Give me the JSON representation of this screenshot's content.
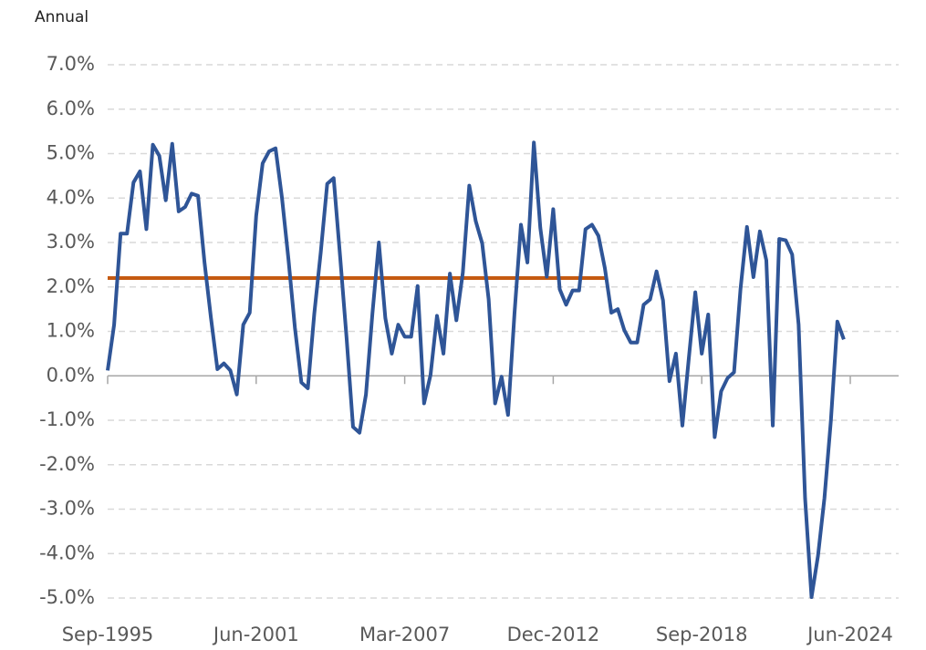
{
  "chart_data": {
    "type": "line",
    "y_label": "Annual",
    "categories": [
      "Sep-1995",
      null,
      null,
      null,
      null,
      null,
      null,
      null,
      null,
      null,
      null,
      null,
      null,
      null,
      null,
      null,
      null,
      null,
      null,
      null,
      null,
      null,
      null,
      "Jun-2001",
      null,
      null,
      null,
      null,
      null,
      null,
      null,
      null,
      null,
      null,
      null,
      null,
      null,
      null,
      null,
      null,
      null,
      null,
      null,
      null,
      null,
      null,
      "Mar-2007",
      null,
      null,
      null,
      null,
      null,
      null,
      null,
      null,
      null,
      null,
      null,
      null,
      null,
      null,
      null,
      null,
      null,
      null,
      null,
      null,
      null,
      null,
      "Dec-2012",
      null,
      null,
      null,
      null,
      null,
      null,
      null,
      null,
      null,
      null,
      null,
      null,
      null,
      null,
      null,
      null,
      null,
      null,
      null,
      null,
      null,
      null,
      "Sep-2018",
      null,
      null,
      null,
      null,
      null,
      null,
      null,
      null,
      null,
      null,
      null,
      null,
      null,
      null,
      null,
      null,
      null,
      null,
      null,
      null,
      null,
      null,
      "Jun-2024"
    ],
    "series": [
      {
        "color": "#2f5597",
        "values": [
          0.12,
          1.15,
          3.2,
          3.2,
          4.35,
          4.6,
          3.3,
          5.2,
          4.95,
          3.95,
          5.22,
          3.7,
          3.8,
          4.1,
          4.05,
          2.55,
          1.3,
          0.15,
          0.28,
          0.12,
          -0.42,
          1.15,
          1.42,
          3.6,
          4.78,
          5.05,
          5.12,
          4.0,
          2.62,
          1.08,
          -0.15,
          -0.28,
          1.4,
          2.78,
          4.32,
          4.45,
          2.68,
          0.85,
          -1.15,
          -1.28,
          -0.42,
          1.4,
          3.0,
          1.3,
          0.5,
          1.15,
          0.88,
          0.88,
          2.02,
          -0.62,
          0.02,
          1.35,
          0.5,
          2.3,
          1.25,
          2.32,
          4.28,
          3.48,
          2.98,
          1.72,
          -0.62,
          -0.02,
          -0.88,
          1.4,
          3.4,
          2.55,
          5.25,
          3.33,
          2.23,
          3.75,
          1.95,
          1.6,
          1.92,
          1.92,
          3.3,
          3.4,
          3.15,
          2.42,
          1.42,
          1.5,
          1.03,
          0.75,
          0.75,
          1.6,
          1.72,
          2.35,
          1.7,
          -0.12,
          0.5,
          -1.12,
          0.4,
          1.88,
          0.5,
          1.38,
          -1.38,
          -0.35,
          -0.05,
          0.08,
          1.95,
          3.35,
          2.22,
          3.25,
          2.6,
          -1.12,
          3.08,
          3.05,
          2.73,
          1.15,
          -2.75,
          -4.98,
          -4.05,
          -2.75,
          -1.0,
          1.22,
          0.82,
          null
        ]
      },
      {
        "color": "#c55a11",
        "values": [
          2.2,
          2.2,
          2.2,
          2.2,
          2.2,
          2.2,
          2.2,
          2.2,
          2.2,
          2.2,
          2.2,
          2.2,
          2.2,
          2.2,
          2.2,
          2.2,
          2.2,
          2.2,
          2.2,
          2.2,
          2.2,
          2.2,
          2.2,
          2.2,
          2.2,
          2.2,
          2.2,
          2.2,
          2.2,
          2.2,
          2.2,
          2.2,
          2.2,
          2.2,
          2.2,
          2.2,
          2.2,
          2.2,
          2.2,
          2.2,
          2.2,
          2.2,
          2.2,
          2.2,
          2.2,
          2.2,
          2.2,
          2.2,
          2.2,
          2.2,
          2.2,
          2.2,
          2.2,
          2.2,
          2.2,
          2.2,
          2.2,
          2.2,
          2.2,
          2.2,
          2.2,
          2.2,
          2.2,
          2.2,
          2.2,
          2.2,
          2.2,
          2.2,
          2.2,
          2.2,
          2.2,
          2.2,
          2.2,
          2.2,
          2.2,
          2.2,
          2.2,
          2.2,
          null,
          null,
          null,
          null,
          null,
          null,
          null,
          null,
          null,
          null,
          null,
          null,
          null,
          null,
          null,
          null,
          null,
          null,
          null,
          null,
          null,
          null,
          null,
          null,
          null,
          null,
          null,
          null,
          null,
          null,
          null,
          null,
          null,
          null,
          null,
          null,
          null,
          null
        ]
      }
    ],
    "ylim": [
      -5,
      7
    ],
    "yticks": [
      {
        "value": -5,
        "label": "-5.0%"
      },
      {
        "value": -4,
        "label": "-4.0%"
      },
      {
        "value": -3,
        "label": "-3.0%"
      },
      {
        "value": -2,
        "label": "-2.0%"
      },
      {
        "value": -1,
        "label": "-1.0%"
      },
      {
        "value": 0,
        "label": "0.0%"
      },
      {
        "value": 1,
        "label": "1.0%"
      },
      {
        "value": 2,
        "label": "2.0%"
      },
      {
        "value": 3,
        "label": "3.0%"
      },
      {
        "value": 4,
        "label": "4.0%"
      },
      {
        "value": 5,
        "label": "5.0%"
      },
      {
        "value": 6,
        "label": "6.0%"
      },
      {
        "value": 7,
        "label": "7.0%"
      }
    ],
    "grid": true
  }
}
